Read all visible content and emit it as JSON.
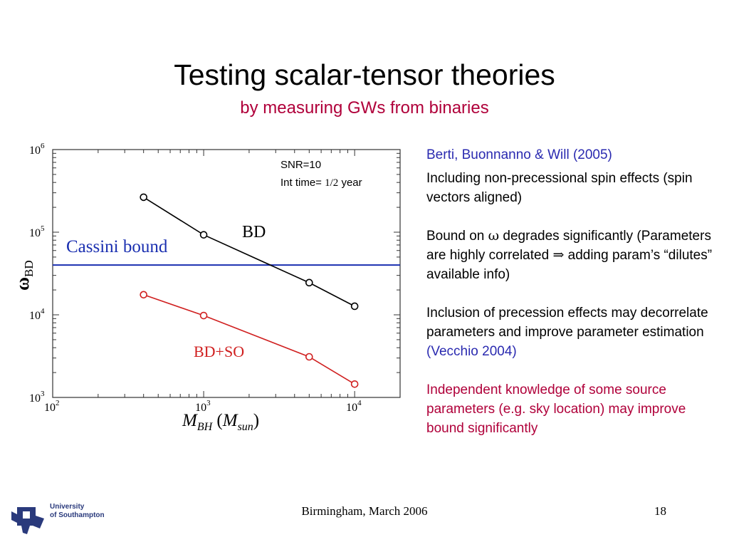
{
  "slide": {
    "title": "Testing scalar-tensor theories",
    "subtitle": "by measuring GWs from binaries",
    "footer": "Birmingham, March 2006",
    "page_number": "18"
  },
  "logo": {
    "line1": "University",
    "line2": "of Southampton"
  },
  "panel": {
    "ref": "Berti, Buonnanno & Will (2005)",
    "p1": "Including non-precessional spin effects (spin vectors aligned)",
    "p2_a": "Bound on ",
    "p2_omega": "ω",
    "p2_b": " degrades significantly (Parameters are highly correlated ",
    "p2_arrow": "⇒",
    "p2_c": " adding param’s “dilutes” available info)",
    "p3_a": "Inclusion of precession effects may decorrelate parameters and improve parameter estimation ",
    "p3_ref": "(Vecchio 2004)",
    "p4": "Independent knowledge of some source parameters (e.g. sky location) may improve bound significantly"
  },
  "chart_data": {
    "type": "line",
    "x_scale": "log",
    "y_scale": "log",
    "xlim": [
      100,
      20000
    ],
    "ylim": [
      1000,
      1000000
    ],
    "x_tick_labels": [
      {
        "base": "10",
        "exp": "2",
        "value": 100
      },
      {
        "base": "10",
        "exp": "3",
        "value": 1000
      },
      {
        "base": "10",
        "exp": "4",
        "value": 10000
      }
    ],
    "y_tick_labels": [
      {
        "base": "10",
        "exp": "3",
        "value": 1000
      },
      {
        "base": "10",
        "exp": "4",
        "value": 10000
      },
      {
        "base": "10",
        "exp": "5",
        "value": 100000
      },
      {
        "base": "10",
        "exp": "6",
        "value": 1000000
      }
    ],
    "xlabel": {
      "M": "M",
      "sub1": "BH",
      "open": " (",
      "M2": "M",
      "sub2": "sun",
      "close": ")"
    },
    "ylabel": {
      "symbol": "ω",
      "sub": "BD"
    },
    "annotation": {
      "line1": "SNR=10",
      "line2_a": "Int time= ",
      "line2_frac": "1/2",
      "line2_b": " year"
    },
    "series": [
      {
        "name": "BD",
        "color": "#000000",
        "x": [
          400,
          1000,
          5000,
          10000
        ],
        "y": [
          265000,
          93000,
          24500,
          12700
        ]
      },
      {
        "name": "BD+SO",
        "color": "#d02020",
        "x": [
          400,
          1000,
          5000,
          10000
        ],
        "y": [
          17500,
          9800,
          3100,
          1450
        ]
      }
    ],
    "hline": {
      "name": "Cassini bound",
      "value": 40000,
      "color": "#1a2fb0"
    }
  }
}
